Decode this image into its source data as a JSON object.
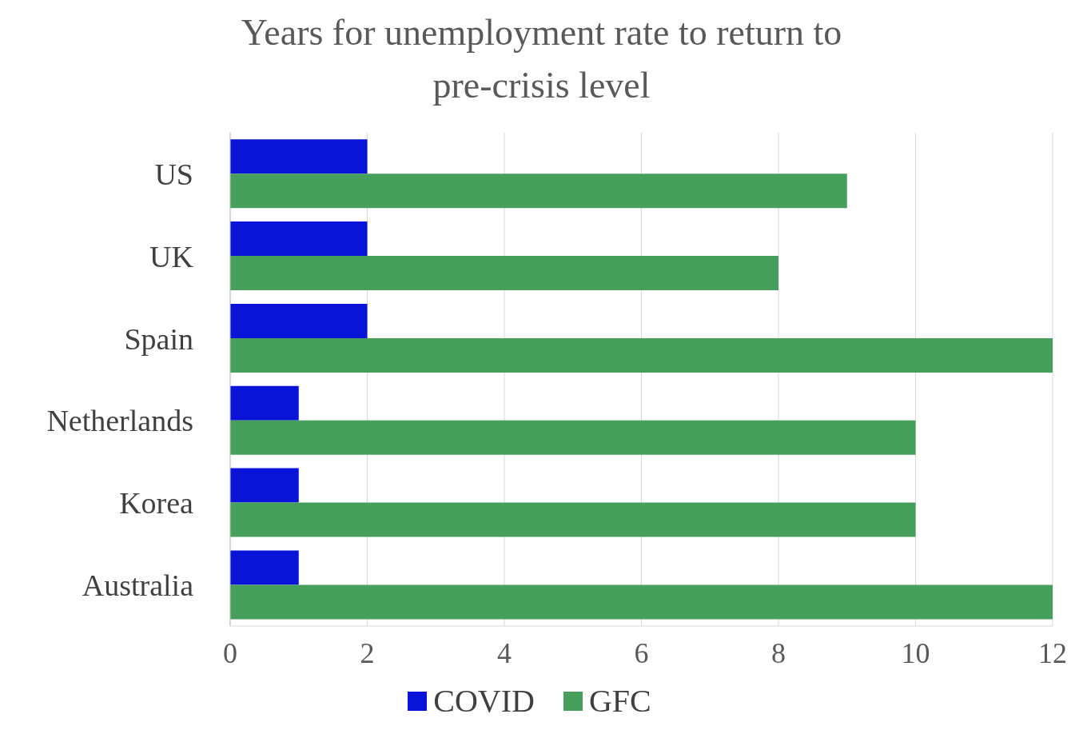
{
  "chart_data": {
    "type": "bar",
    "orientation": "horizontal",
    "title": "Years for unemployment rate to return to pre-crisis level",
    "categories": [
      "US",
      "UK",
      "Spain",
      "Netherlands",
      "Korea",
      "Australia"
    ],
    "series": [
      {
        "name": "COVID",
        "color": "#0a14d8",
        "values": [
          2,
          2,
          2,
          1,
          1,
          1
        ]
      },
      {
        "name": "GFC",
        "color": "#46a05c",
        "values": [
          9,
          8,
          12,
          10,
          10,
          12
        ]
      }
    ],
    "xlim": [
      0,
      12
    ],
    "xticks": [
      0,
      2,
      4,
      6,
      8,
      10,
      12
    ],
    "grid": "x",
    "legend": "bottom"
  }
}
